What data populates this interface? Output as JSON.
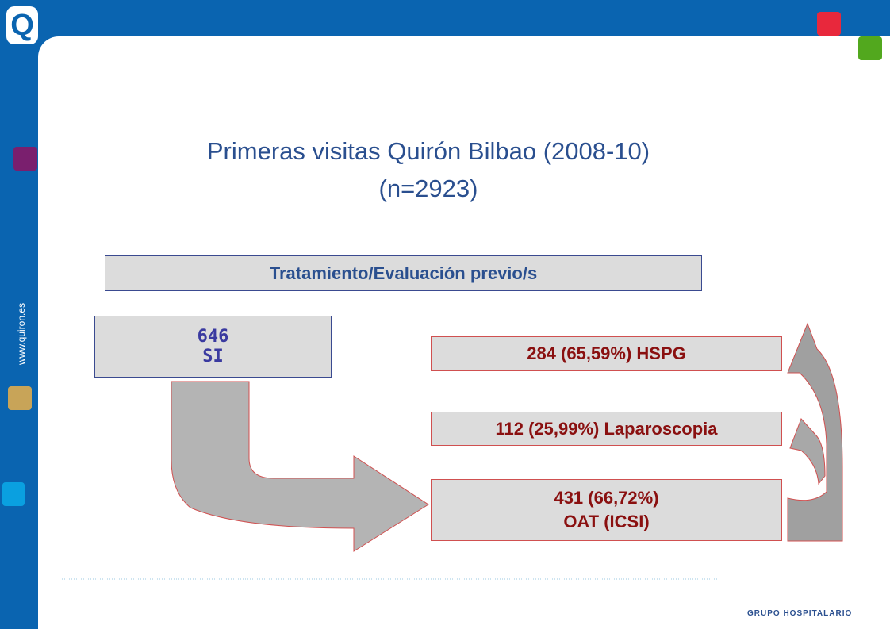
{
  "logo": "Q",
  "title": {
    "line1": "Primeras visitas Quirón Bilbao (2008-10)",
    "line2": "(n=2923)"
  },
  "header_box": "Tratamiento/Evaluación previo/s",
  "left_box": {
    "count": "646",
    "label": "SI"
  },
  "results": [
    {
      "line1": "284 (65,59%) HSPG"
    },
    {
      "line1": "112 (25,99%) Laparoscopia"
    },
    {
      "line1": "431 (66,72%)",
      "line2": "OAT (ICSI)"
    }
  ],
  "side": {
    "website": "www.quiron.es"
  },
  "footer": {
    "brand": "GRUPO HOSPITALARIO"
  }
}
